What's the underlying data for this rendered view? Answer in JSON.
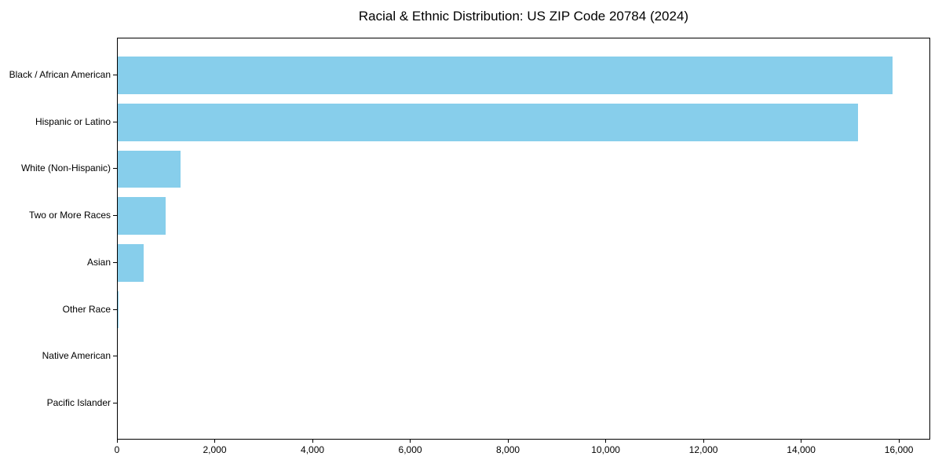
{
  "page": {
    "background_color": "#ffffff"
  },
  "chart_data": {
    "type": "bar",
    "orientation": "horizontal",
    "title": "Racial & Ethnic Distribution: US ZIP Code 20784 (2024)",
    "categories": [
      "Black / African American",
      "Hispanic or Latino",
      "White (Non-Hispanic)",
      "Two or More Races",
      "Asian",
      "Other Race",
      "Native American",
      "Pacific Islander"
    ],
    "values": [
      15850,
      15150,
      1290,
      980,
      530,
      20,
      0,
      0
    ],
    "xlabel": "",
    "ylabel": "",
    "xlim": [
      0,
      16640
    ],
    "x_ticks": [
      0,
      2000,
      4000,
      6000,
      8000,
      10000,
      12000,
      14000,
      16000
    ],
    "x_tick_labels": [
      "0",
      "2,000",
      "4,000",
      "6,000",
      "8,000",
      "10,000",
      "12,000",
      "14,000",
      "16,000"
    ],
    "bar_color": "#87CEEB",
    "axis_color": "#000000",
    "text_color": "#000000",
    "grid": false,
    "legend": false
  }
}
